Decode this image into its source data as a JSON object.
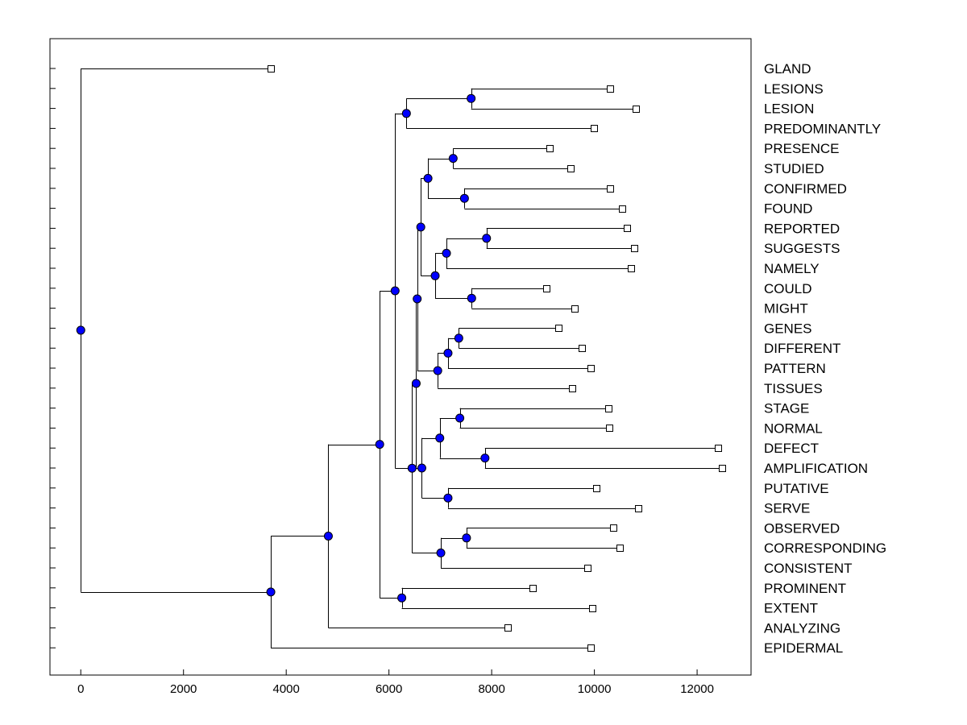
{
  "chart_data": {
    "type": "dendrogram",
    "title": "",
    "xlabel": "",
    "ylabel": "",
    "xlim": [
      -600,
      13050
    ],
    "xticks": [
      0,
      2000,
      4000,
      6000,
      8000,
      10000,
      12000
    ],
    "grid": false,
    "colors": {
      "node_fill": "#0000ff",
      "node_stroke": "#000000",
      "line": "#000000",
      "leaf_fill": "#ffffff"
    },
    "leaves": [
      {
        "label": "GLAND",
        "x": 3700
      },
      {
        "label": "LESIONS",
        "x": 10300
      },
      {
        "label": "LESION",
        "x": 10800
      },
      {
        "label": "PREDOMINANTLY",
        "x": 9990
      },
      {
        "label": "PRESENCE",
        "x": 9120
      },
      {
        "label": "STUDIED",
        "x": 9540
      },
      {
        "label": "CONFIRMED",
        "x": 10310
      },
      {
        "label": "FOUND",
        "x": 10540
      },
      {
        "label": "REPORTED",
        "x": 10640
      },
      {
        "label": "SUGGESTS",
        "x": 10770
      },
      {
        "label": "NAMELY",
        "x": 10720
      },
      {
        "label": "COULD",
        "x": 9060
      },
      {
        "label": "MIGHT",
        "x": 9620
      },
      {
        "label": "GENES",
        "x": 9300
      },
      {
        "label": "DIFFERENT",
        "x": 9750
      },
      {
        "label": "PATTERN",
        "x": 9920
      },
      {
        "label": "TISSUES",
        "x": 9560
      },
      {
        "label": "STAGE",
        "x": 10270
      },
      {
        "label": "NORMAL",
        "x": 10290
      },
      {
        "label": "DEFECT",
        "x": 12400
      },
      {
        "label": "AMPLIFICATION",
        "x": 12480
      },
      {
        "label": "PUTATIVE",
        "x": 10040
      },
      {
        "label": "SERVE",
        "x": 10860
      },
      {
        "label": "OBSERVED",
        "x": 10360
      },
      {
        "label": "CORRESPONDING",
        "x": 10500
      },
      {
        "label": "CONSISTENT",
        "x": 9860
      },
      {
        "label": "PROMINENT",
        "x": 8800
      },
      {
        "label": "EXTENT",
        "x": 9960
      },
      {
        "label": "ANALYZING",
        "x": 8310
      },
      {
        "label": "EPIDERMAL",
        "x": 9930
      }
    ],
    "merges": [
      {
        "id": "n1",
        "x": 7600,
        "children": [
          1,
          2
        ]
      },
      {
        "id": "n2",
        "x": 6340,
        "children": [
          "n1",
          3
        ]
      },
      {
        "id": "n3",
        "x": 7250,
        "children": [
          4,
          5
        ]
      },
      {
        "id": "n4",
        "x": 7470,
        "children": [
          6,
          7
        ]
      },
      {
        "id": "n5",
        "x": 6760,
        "children": [
          "n3",
          "n4"
        ]
      },
      {
        "id": "n6",
        "x": 7900,
        "children": [
          8,
          9
        ]
      },
      {
        "id": "n7",
        "x": 7120,
        "children": [
          "n6",
          10
        ]
      },
      {
        "id": "n8",
        "x": 7610,
        "children": [
          11,
          12
        ]
      },
      {
        "id": "n9",
        "x": 6900,
        "children": [
          "n7",
          "n8"
        ]
      },
      {
        "id": "n10",
        "x": 6620,
        "children": [
          "n5",
          "n9"
        ]
      },
      {
        "id": "n11",
        "x": 7360,
        "children": [
          13,
          14
        ]
      },
      {
        "id": "n12",
        "x": 7150,
        "children": [
          "n11",
          15
        ]
      },
      {
        "id": "n13",
        "x": 6950,
        "children": [
          "n12",
          16
        ]
      },
      {
        "id": "n14",
        "x": 6550,
        "children": [
          "n10",
          "n13"
        ]
      },
      {
        "id": "n15",
        "x": 7380,
        "children": [
          17,
          18
        ]
      },
      {
        "id": "n16",
        "x": 7870,
        "children": [
          19,
          20
        ]
      },
      {
        "id": "n17",
        "x": 6990,
        "children": [
          "n15",
          "n16"
        ]
      },
      {
        "id": "n18",
        "x": 7150,
        "children": [
          21,
          22
        ]
      },
      {
        "id": "n19",
        "x": 6640,
        "children": [
          "n17",
          "n18"
        ]
      },
      {
        "id": "n20",
        "x": 6530,
        "children": [
          "n14",
          "n19"
        ]
      },
      {
        "id": "n21",
        "x": 7510,
        "children": [
          23,
          24
        ]
      },
      {
        "id": "n22",
        "x": 7010,
        "children": [
          "n21",
          25
        ]
      },
      {
        "id": "n23",
        "x": 6450,
        "children": [
          "n20",
          "n22"
        ]
      },
      {
        "id": "n24",
        "x": 6120,
        "children": [
          "n2",
          "n23"
        ]
      },
      {
        "id": "n25",
        "x": 6250,
        "children": [
          26,
          27
        ]
      },
      {
        "id": "n26",
        "x": 5820,
        "children": [
          "n24",
          "n25"
        ]
      },
      {
        "id": "n27",
        "x": 4820,
        "children": [
          "n26",
          28
        ]
      },
      {
        "id": "n28",
        "x": 3700,
        "children": [
          "n27",
          29
        ]
      },
      {
        "id": "n29",
        "x": 0,
        "children": [
          0,
          "n28"
        ]
      }
    ]
  }
}
